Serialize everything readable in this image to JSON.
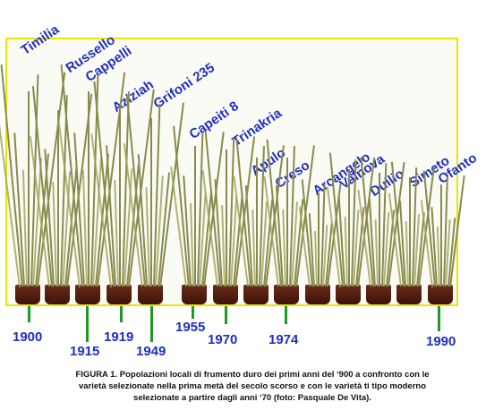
{
  "varieties": [
    "Timilia",
    "Russello",
    "Cappelli",
    "Aziziah",
    "Grifoni 235",
    "Capeiti 8",
    "Trinakria",
    "Apulo",
    "Creso",
    "Arcangelo",
    "Valnova",
    "Duilio",
    "Simeto",
    "Ofanto"
  ],
  "years": [
    "1900",
    "1915",
    "1919",
    "1949",
    "1955",
    "1970",
    "1974",
    "1990"
  ],
  "caption": {
    "line1": "FIGURA 1. Popolazioni locali di frumento duro dei primi anni del ‘900 a confronto con le",
    "line2": "varietà selezionate  nella prima metà del secolo scorso e con le varietà ti tipo moderno",
    "line3": "selezionate a partire dagli anni ‘70 (foto: Pasquale De Vita)."
  },
  "colors": {
    "label": "#1f2fc0",
    "tick": "#1e9a1e",
    "frame": "#e6e600"
  }
}
